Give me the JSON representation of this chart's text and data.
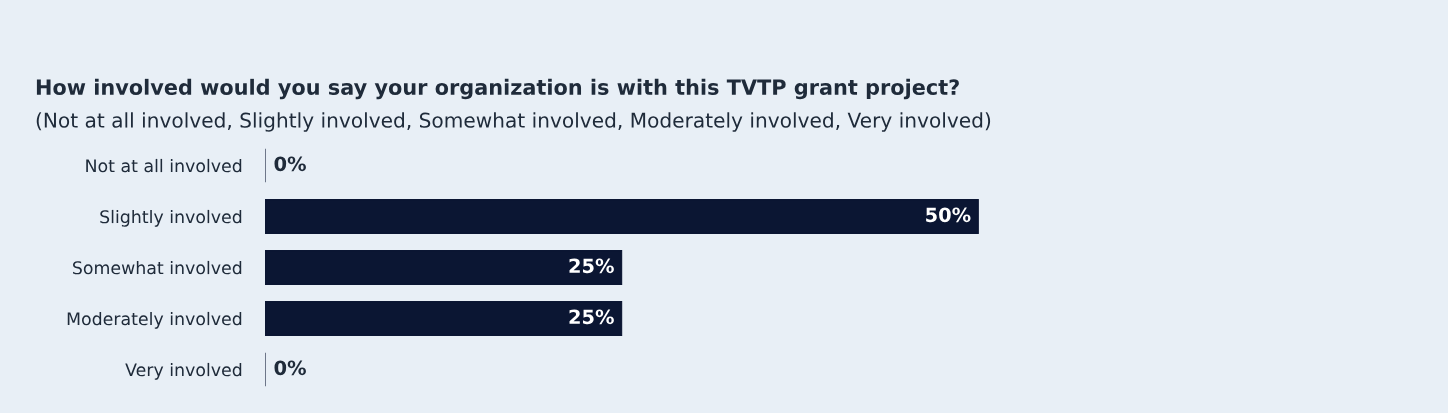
{
  "chart_data": {
    "type": "bar",
    "orientation": "horizontal",
    "title": "How involved would you say your organization is with this TVTP grant project?",
    "subtitle": "(Not at all involved, Slightly involved, Somewhat involved, Moderately involved, Very involved)",
    "categories": [
      "Not at all involved",
      "Slightly involved",
      "Somewhat involved",
      "Moderately involved",
      "Very involved"
    ],
    "values": [
      0,
      50,
      25,
      25,
      0
    ],
    "value_labels": [
      "0%",
      "50%",
      "25%",
      "25%",
      "0%"
    ],
    "color": "#0b1633",
    "tick_labels": "y"
  }
}
